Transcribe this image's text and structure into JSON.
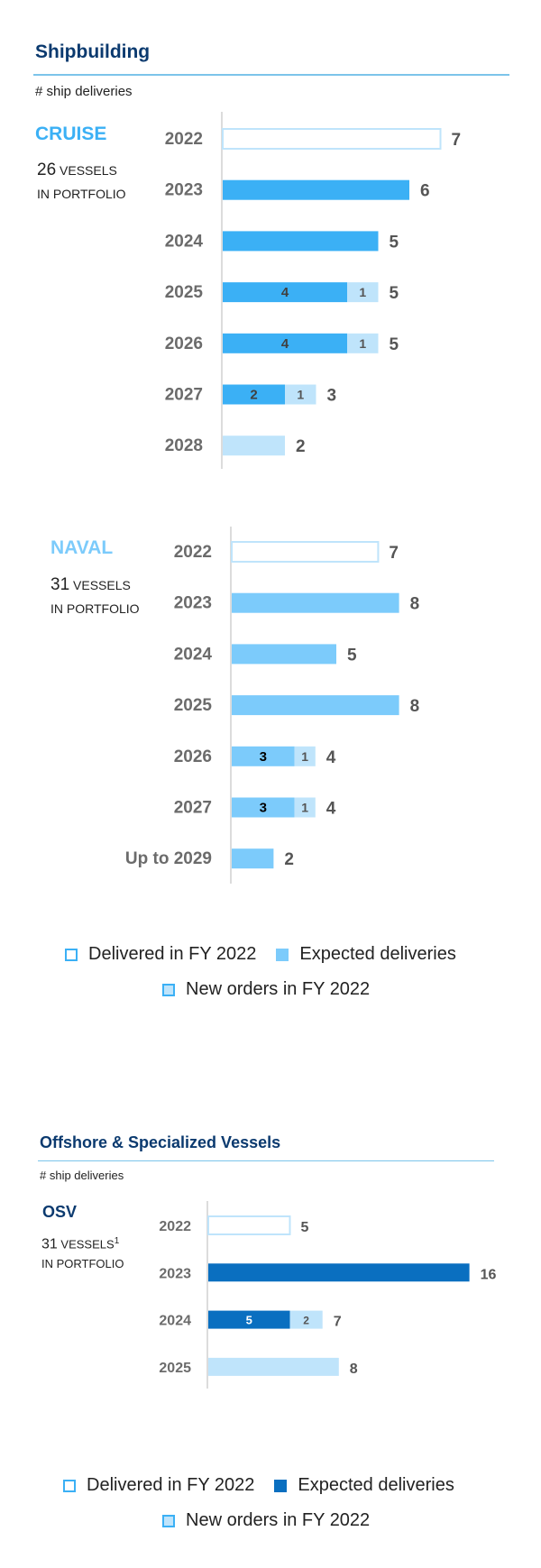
{
  "sections": [
    {
      "title": "Shipbuilding",
      "subtitle": "# ship deliveries",
      "legend": {
        "delivered": "Delivered in FY 2022",
        "expected": "Expected deliveries",
        "new_orders": "New orders in FY 2022"
      }
    },
    {
      "title": "Offshore & Specialized Vessels",
      "subtitle": "# ship deliveries",
      "legend": {
        "delivered": "Delivered in FY 2022",
        "expected": "Expected deliveries",
        "new_orders": "New orders in FY 2022"
      }
    }
  ],
  "groups": [
    {
      "name": "CRUISE",
      "count": "26",
      "vessels_label": "VESSELS",
      "portfolio_label": "IN PORTFOLIO"
    },
    {
      "name": "NAVAL",
      "count": "31",
      "vessels_label": "VESSELS",
      "portfolio_label": "IN PORTFOLIO"
    },
    {
      "name": "OSV",
      "count": "31",
      "vessels_label": "VESSELS",
      "footnote": "1",
      "portfolio_label": "IN PORTFOLIO"
    }
  ],
  "colors": {
    "cruise_expected": "#3bb0f5",
    "naval_expected": "#7ccbfb",
    "osv_expected": "#0a6fc0",
    "new_orders": "#bfe4fb",
    "delivered_border": "#bfe4fb",
    "title": "#0b3a6f",
    "cruise_label": "#3bb0f5",
    "naval_label": "#7ccbfb",
    "osv_label": "#0b3a6f"
  },
  "chart_data": [
    {
      "type": "bar",
      "group": "CRUISE",
      "orientation": "horizontal",
      "stacked": true,
      "categories": [
        "2022",
        "2023",
        "2024",
        "2025",
        "2026",
        "2027",
        "2028"
      ],
      "series": [
        {
          "name": "Delivered in FY 2022",
          "values": [
            7,
            0,
            0,
            0,
            0,
            0,
            0
          ]
        },
        {
          "name": "Expected deliveries",
          "values": [
            0,
            6,
            5,
            4,
            4,
            2,
            0
          ]
        },
        {
          "name": "New orders in FY 2022",
          "values": [
            0,
            0,
            0,
            1,
            1,
            1,
            2
          ]
        }
      ],
      "totals": [
        7,
        6,
        5,
        5,
        5,
        3,
        2
      ],
      "segment_labels": [
        [
          "",
          ""
        ],
        [
          "",
          ""
        ],
        [
          "",
          ""
        ],
        [
          "4",
          "1"
        ],
        [
          "4",
          "1"
        ],
        [
          "2",
          "1"
        ],
        [
          "",
          ""
        ]
      ]
    },
    {
      "type": "bar",
      "group": "NAVAL",
      "orientation": "horizontal",
      "stacked": true,
      "categories": [
        "2022",
        "2023",
        "2024",
        "2025",
        "2026",
        "2027",
        "Up to 2029"
      ],
      "series": [
        {
          "name": "Delivered in FY 2022",
          "values": [
            7,
            0,
            0,
            0,
            0,
            0,
            0
          ]
        },
        {
          "name": "Expected deliveries",
          "values": [
            0,
            8,
            5,
            8,
            3,
            3,
            2
          ]
        },
        {
          "name": "New orders in FY 2022",
          "values": [
            0,
            0,
            0,
            0,
            1,
            1,
            0
          ]
        }
      ],
      "totals": [
        7,
        8,
        5,
        8,
        4,
        4,
        2
      ],
      "segment_labels": [
        [
          "",
          ""
        ],
        [
          "",
          ""
        ],
        [
          "",
          ""
        ],
        [
          "",
          ""
        ],
        [
          "3",
          "1"
        ],
        [
          "3",
          "1"
        ],
        [
          "",
          ""
        ]
      ]
    },
    {
      "type": "bar",
      "group": "OSV",
      "orientation": "horizontal",
      "stacked": true,
      "categories": [
        "2022",
        "2023",
        "2024",
        "2025"
      ],
      "series": [
        {
          "name": "Delivered in FY 2022",
          "values": [
            5,
            0,
            0,
            0
          ]
        },
        {
          "name": "Expected deliveries",
          "values": [
            0,
            16,
            5,
            0
          ]
        },
        {
          "name": "New orders in FY 2022",
          "values": [
            0,
            0,
            2,
            8
          ]
        }
      ],
      "totals": [
        5,
        16,
        7,
        8
      ],
      "segment_labels": [
        [
          "",
          ""
        ],
        [
          "",
          ""
        ],
        [
          "5",
          "2"
        ],
        [
          "",
          ""
        ]
      ]
    }
  ]
}
